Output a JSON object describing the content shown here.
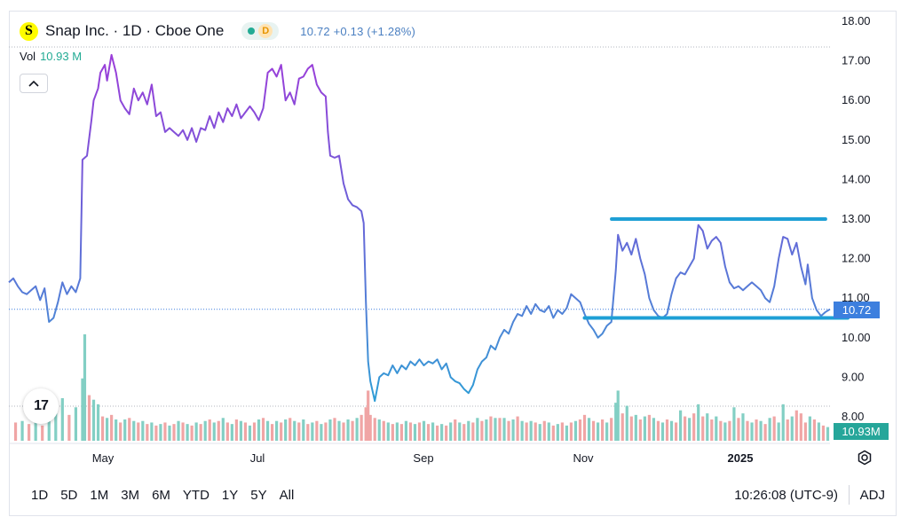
{
  "header": {
    "logo_letter": "S",
    "title": "Snap Inc. · 1D · Cboe One",
    "status_letter": "D",
    "quote": "10.72  +0.13 (+1.28%)",
    "vol_label": "Vol",
    "vol_value": "10.93 M",
    "collapse_glyph": "^"
  },
  "badges": {
    "last_price": "10.72",
    "last_volume": "10.93M"
  },
  "tv_logo_text": "17",
  "bottom_bar": {
    "ranges": [
      "1D",
      "5D",
      "1M",
      "3M",
      "6M",
      "YTD",
      "1Y",
      "5Y",
      "All"
    ],
    "clock": "10:26:08 (UTC-9)",
    "adj": "ADJ"
  },
  "colors": {
    "line_gradient_top": "#9c3dd9",
    "line_gradient_bottom": "#2a9fd6",
    "line_mid": "#4e7ddc",
    "drawing_lines": "#1e9fd5",
    "volume_up": "#83cfc4",
    "volume_down": "#f0a5a5",
    "last_price": "#3d7fde",
    "last_volume": "#26a69a"
  },
  "chart_data": {
    "type": "line",
    "title": "Snap Inc. · 1D · Cboe One",
    "xlabel": "",
    "ylabel": "",
    "ylim": [
      7.5,
      18.2
    ],
    "y_ticks": [
      "18.00",
      "17.00",
      "16.00",
      "15.00",
      "14.00",
      "13.00",
      "12.00",
      "11.00",
      "10.00",
      "9.00",
      "8.00"
    ],
    "x_ticks": [
      {
        "label": "May",
        "day": 32
      },
      {
        "label": "Jul",
        "day": 93
      },
      {
        "label": "Sep",
        "day": 155
      },
      {
        "label": "Nov",
        "day": 217
      },
      {
        "label": "2025",
        "day": 278
      }
    ],
    "x_day_range": [
      0,
      296
    ],
    "price_points": [
      [
        0,
        11.4
      ],
      [
        2,
        11.5
      ],
      [
        4,
        11.3
      ],
      [
        6,
        11.15
      ],
      [
        8,
        11.1
      ],
      [
        10,
        11.2
      ],
      [
        12,
        11.3
      ],
      [
        14,
        10.95
      ],
      [
        16,
        11.25
      ],
      [
        18,
        10.4
      ],
      [
        20,
        10.5
      ],
      [
        22,
        10.9
      ],
      [
        24,
        11.4
      ],
      [
        26,
        11.1
      ],
      [
        28,
        11.3
      ],
      [
        30,
        11.15
      ],
      [
        32,
        11.5
      ],
      [
        33,
        14.5
      ],
      [
        35,
        14.6
      ],
      [
        37,
        15.5
      ],
      [
        38,
        16.0
      ],
      [
        40,
        16.3
      ],
      [
        41,
        16.7
      ],
      [
        43,
        16.9
      ],
      [
        44,
        16.5
      ],
      [
        46,
        17.15
      ],
      [
        48,
        16.7
      ],
      [
        50,
        16.0
      ],
      [
        52,
        15.8
      ],
      [
        54,
        15.65
      ],
      [
        56,
        16.3
      ],
      [
        58,
        16.0
      ],
      [
        60,
        16.2
      ],
      [
        62,
        15.9
      ],
      [
        64,
        16.4
      ],
      [
        66,
        15.6
      ],
      [
        68,
        15.7
      ],
      [
        70,
        15.2
      ],
      [
        72,
        15.3
      ],
      [
        74,
        15.2
      ],
      [
        76,
        15.1
      ],
      [
        78,
        15.25
      ],
      [
        80,
        15.0
      ],
      [
        82,
        15.3
      ],
      [
        84,
        14.95
      ],
      [
        86,
        15.3
      ],
      [
        88,
        15.25
      ],
      [
        90,
        15.6
      ],
      [
        92,
        15.3
      ],
      [
        94,
        15.7
      ],
      [
        96,
        15.45
      ],
      [
        98,
        15.8
      ],
      [
        100,
        15.6
      ],
      [
        102,
        15.9
      ],
      [
        104,
        15.55
      ],
      [
        106,
        15.7
      ],
      [
        108,
        15.85
      ],
      [
        110,
        15.7
      ],
      [
        112,
        15.5
      ],
      [
        114,
        15.8
      ],
      [
        116,
        16.7
      ],
      [
        118,
        16.8
      ],
      [
        120,
        16.6
      ],
      [
        122,
        16.9
      ],
      [
        124,
        16.0
      ],
      [
        126,
        16.2
      ],
      [
        128,
        15.9
      ],
      [
        130,
        16.55
      ],
      [
        132,
        16.6
      ],
      [
        134,
        16.8
      ],
      [
        136,
        16.9
      ],
      [
        138,
        16.4
      ],
      [
        140,
        16.2
      ],
      [
        142,
        16.1
      ],
      [
        143,
        15.2
      ],
      [
        144,
        14.6
      ],
      [
        146,
        14.55
      ],
      [
        148,
        14.6
      ],
      [
        150,
        13.9
      ],
      [
        152,
        13.5
      ],
      [
        154,
        13.35
      ],
      [
        156,
        13.3
      ],
      [
        158,
        13.2
      ],
      [
        159,
        12.9
      ],
      [
        160,
        10.9
      ],
      [
        161,
        9.4
      ],
      [
        162,
        8.9
      ],
      [
        164,
        8.4
      ],
      [
        166,
        9.0
      ],
      [
        168,
        9.1
      ],
      [
        170,
        9.05
      ],
      [
        172,
        9.3
      ],
      [
        174,
        9.1
      ],
      [
        176,
        9.3
      ],
      [
        178,
        9.2
      ],
      [
        180,
        9.4
      ],
      [
        182,
        9.3
      ],
      [
        184,
        9.45
      ],
      [
        186,
        9.3
      ],
      [
        188,
        9.4
      ],
      [
        190,
        9.35
      ],
      [
        192,
        9.45
      ],
      [
        194,
        9.2
      ],
      [
        196,
        9.35
      ],
      [
        198,
        9.0
      ],
      [
        200,
        8.9
      ],
      [
        202,
        8.85
      ],
      [
        204,
        8.7
      ],
      [
        206,
        8.6
      ],
      [
        208,
        8.8
      ],
      [
        210,
        9.2
      ],
      [
        212,
        9.4
      ],
      [
        214,
        9.5
      ],
      [
        216,
        9.8
      ],
      [
        218,
        9.7
      ],
      [
        220,
        10.0
      ],
      [
        222,
        10.2
      ],
      [
        224,
        10.1
      ],
      [
        226,
        10.4
      ],
      [
        228,
        10.6
      ],
      [
        230,
        10.55
      ],
      [
        232,
        10.8
      ],
      [
        234,
        10.6
      ],
      [
        236,
        10.85
      ],
      [
        238,
        10.7
      ],
      [
        240,
        10.65
      ],
      [
        242,
        10.8
      ],
      [
        244,
        10.5
      ],
      [
        246,
        10.7
      ],
      [
        248,
        10.6
      ],
      [
        250,
        10.75
      ],
      [
        252,
        11.1
      ],
      [
        254,
        11.0
      ],
      [
        256,
        10.9
      ],
      [
        258,
        10.6
      ],
      [
        260,
        10.35
      ],
      [
        262,
        10.2
      ],
      [
        264,
        10.0
      ],
      [
        266,
        10.1
      ],
      [
        268,
        10.3
      ],
      [
        270,
        10.4
      ],
      [
        272,
        11.7
      ],
      [
        273,
        12.6
      ],
      [
        275,
        12.2
      ],
      [
        277,
        12.4
      ],
      [
        279,
        12.1
      ],
      [
        281,
        12.5
      ],
      [
        283,
        12.0
      ],
      [
        285,
        11.6
      ],
      [
        287,
        11.0
      ],
      [
        289,
        10.7
      ],
      [
        291,
        10.55
      ],
      [
        293,
        10.5
      ],
      [
        295,
        10.6
      ],
      [
        297,
        11.1
      ],
      [
        299,
        11.5
      ],
      [
        301,
        11.65
      ],
      [
        303,
        11.6
      ],
      [
        305,
        11.8
      ],
      [
        307,
        12.0
      ],
      [
        309,
        12.85
      ],
      [
        311,
        12.7
      ],
      [
        313,
        12.25
      ],
      [
        315,
        12.45
      ],
      [
        317,
        12.55
      ],
      [
        319,
        12.4
      ],
      [
        321,
        11.8
      ],
      [
        323,
        11.4
      ],
      [
        325,
        11.25
      ],
      [
        327,
        11.3
      ],
      [
        329,
        11.2
      ],
      [
        331,
        11.3
      ],
      [
        333,
        11.4
      ],
      [
        335,
        11.3
      ],
      [
        337,
        11.2
      ],
      [
        339,
        11.0
      ],
      [
        341,
        10.9
      ],
      [
        343,
        11.3
      ],
      [
        345,
        12.0
      ],
      [
        347,
        12.55
      ],
      [
        349,
        12.5
      ],
      [
        351,
        12.1
      ],
      [
        353,
        12.4
      ],
      [
        355,
        11.8
      ],
      [
        357,
        11.35
      ],
      [
        358,
        11.85
      ],
      [
        360,
        11.0
      ],
      [
        362,
        10.7
      ],
      [
        364,
        10.55
      ],
      [
        366,
        10.65
      ],
      [
        368,
        10.72
      ]
    ],
    "price_x_scale_note_days_total": 368,
    "support_line": {
      "from_day": 258,
      "to_day": 368,
      "value": 10.5
    },
    "resistance_line": {
      "from_day": 263,
      "to_day": 358,
      "value": 13.0
    },
    "last_price": 10.72,
    "volume_millions": [
      [
        3,
        12,
        0
      ],
      [
        6,
        13,
        1
      ],
      [
        9,
        11,
        0
      ],
      [
        12,
        12,
        1
      ],
      [
        15,
        10,
        0
      ],
      [
        18,
        14,
        1
      ],
      [
        21,
        27,
        1
      ],
      [
        24,
        28,
        1
      ],
      [
        27,
        17,
        0
      ],
      [
        30,
        22,
        1
      ],
      [
        33,
        41,
        1
      ],
      [
        34,
        70,
        1
      ],
      [
        36,
        30,
        0
      ],
      [
        38,
        27,
        1
      ],
      [
        40,
        24,
        1
      ],
      [
        42,
        16,
        0
      ],
      [
        44,
        15,
        1
      ],
      [
        46,
        17,
        0
      ],
      [
        48,
        14,
        1
      ],
      [
        50,
        12,
        0
      ],
      [
        52,
        14,
        1
      ],
      [
        54,
        15,
        0
      ],
      [
        56,
        13,
        1
      ],
      [
        58,
        12,
        0
      ],
      [
        60,
        13,
        1
      ],
      [
        62,
        11,
        0
      ],
      [
        64,
        12,
        1
      ],
      [
        66,
        10,
        0
      ],
      [
        68,
        11,
        1
      ],
      [
        70,
        12,
        0
      ],
      [
        72,
        10,
        1
      ],
      [
        74,
        11,
        0
      ],
      [
        76,
        13,
        1
      ],
      [
        78,
        12,
        0
      ],
      [
        80,
        11,
        1
      ],
      [
        82,
        10,
        0
      ],
      [
        84,
        12,
        1
      ],
      [
        86,
        11,
        0
      ],
      [
        88,
        13,
        1
      ],
      [
        90,
        14,
        0
      ],
      [
        92,
        12,
        1
      ],
      [
        94,
        13,
        0
      ],
      [
        96,
        15,
        1
      ],
      [
        98,
        12,
        0
      ],
      [
        100,
        11,
        1
      ],
      [
        102,
        14,
        0
      ],
      [
        104,
        13,
        1
      ],
      [
        106,
        12,
        0
      ],
      [
        108,
        10,
        1
      ],
      [
        110,
        12,
        0
      ],
      [
        112,
        14,
        1
      ],
      [
        114,
        15,
        0
      ],
      [
        116,
        13,
        1
      ],
      [
        118,
        11,
        0
      ],
      [
        120,
        13,
        1
      ],
      [
        122,
        12,
        0
      ],
      [
        124,
        14,
        1
      ],
      [
        126,
        15,
        0
      ],
      [
        128,
        13,
        1
      ],
      [
        130,
        12,
        0
      ],
      [
        132,
        14,
        1
      ],
      [
        134,
        11,
        0
      ],
      [
        136,
        12,
        1
      ],
      [
        138,
        13,
        0
      ],
      [
        140,
        11,
        1
      ],
      [
        142,
        12,
        0
      ],
      [
        144,
        14,
        1
      ],
      [
        146,
        15,
        0
      ],
      [
        148,
        13,
        1
      ],
      [
        150,
        12,
        0
      ],
      [
        152,
        14,
        1
      ],
      [
        154,
        13,
        0
      ],
      [
        156,
        15,
        1
      ],
      [
        158,
        17,
        0
      ],
      [
        160,
        22,
        0
      ],
      [
        161,
        33,
        0
      ],
      [
        162,
        17,
        0
      ],
      [
        164,
        15,
        0
      ],
      [
        166,
        14,
        1
      ],
      [
        168,
        13,
        0
      ],
      [
        170,
        12,
        1
      ],
      [
        172,
        11,
        0
      ],
      [
        174,
        12,
        1
      ],
      [
        176,
        11,
        0
      ],
      [
        178,
        13,
        1
      ],
      [
        180,
        12,
        0
      ],
      [
        182,
        11,
        1
      ],
      [
        184,
        12,
        0
      ],
      [
        186,
        13,
        1
      ],
      [
        188,
        11,
        0
      ],
      [
        190,
        12,
        1
      ],
      [
        192,
        10,
        0
      ],
      [
        194,
        11,
        1
      ],
      [
        196,
        10,
        0
      ],
      [
        198,
        12,
        1
      ],
      [
        200,
        14,
        0
      ],
      [
        202,
        12,
        1
      ],
      [
        204,
        11,
        0
      ],
      [
        206,
        13,
        1
      ],
      [
        208,
        12,
        0
      ],
      [
        210,
        15,
        1
      ],
      [
        212,
        13,
        0
      ],
      [
        214,
        14,
        1
      ],
      [
        216,
        16,
        0
      ],
      [
        218,
        15,
        1
      ],
      [
        220,
        15,
        0
      ],
      [
        222,
        15,
        1
      ],
      [
        224,
        13,
        0
      ],
      [
        226,
        14,
        1
      ],
      [
        228,
        16,
        0
      ],
      [
        230,
        13,
        1
      ],
      [
        232,
        12,
        0
      ],
      [
        234,
        13,
        1
      ],
      [
        236,
        12,
        0
      ],
      [
        238,
        11,
        1
      ],
      [
        240,
        13,
        0
      ],
      [
        242,
        12,
        1
      ],
      [
        244,
        10,
        0
      ],
      [
        246,
        11,
        1
      ],
      [
        248,
        12,
        0
      ],
      [
        250,
        10,
        1
      ],
      [
        252,
        12,
        0
      ],
      [
        254,
        13,
        1
      ],
      [
        256,
        14,
        0
      ],
      [
        258,
        17,
        0
      ],
      [
        260,
        15,
        1
      ],
      [
        262,
        13,
        0
      ],
      [
        264,
        12,
        1
      ],
      [
        266,
        14,
        0
      ],
      [
        268,
        12,
        1
      ],
      [
        270,
        15,
        0
      ],
      [
        272,
        25,
        1
      ],
      [
        273,
        33,
        1
      ],
      [
        275,
        18,
        0
      ],
      [
        277,
        23,
        1
      ],
      [
        279,
        16,
        0
      ],
      [
        281,
        17,
        1
      ],
      [
        283,
        14,
        0
      ],
      [
        285,
        16,
        1
      ],
      [
        287,
        17,
        0
      ],
      [
        289,
        15,
        1
      ],
      [
        291,
        13,
        0
      ],
      [
        293,
        12,
        1
      ],
      [
        295,
        14,
        0
      ],
      [
        297,
        13,
        1
      ],
      [
        299,
        12,
        0
      ],
      [
        301,
        20,
        1
      ],
      [
        303,
        16,
        0
      ],
      [
        305,
        15,
        1
      ],
      [
        307,
        18,
        0
      ],
      [
        309,
        24,
        1
      ],
      [
        311,
        16,
        0
      ],
      [
        313,
        18,
        1
      ],
      [
        315,
        14,
        0
      ],
      [
        317,
        16,
        1
      ],
      [
        319,
        13,
        0
      ],
      [
        321,
        12,
        1
      ],
      [
        323,
        13,
        0
      ],
      [
        325,
        22,
        1
      ],
      [
        327,
        15,
        0
      ],
      [
        329,
        18,
        1
      ],
      [
        331,
        13,
        0
      ],
      [
        333,
        12,
        1
      ],
      [
        335,
        14,
        0
      ],
      [
        337,
        13,
        1
      ],
      [
        339,
        11,
        0
      ],
      [
        341,
        15,
        1
      ],
      [
        343,
        16,
        0
      ],
      [
        345,
        12,
        1
      ],
      [
        347,
        24,
        1
      ],
      [
        349,
        14,
        0
      ],
      [
        351,
        16,
        1
      ],
      [
        353,
        20,
        0
      ],
      [
        355,
        18,
        0
      ],
      [
        357,
        12,
        0
      ],
      [
        359,
        16,
        1
      ],
      [
        361,
        14,
        0
      ],
      [
        363,
        12,
        1
      ],
      [
        365,
        10,
        0
      ],
      [
        367,
        9,
        1
      ]
    ]
  }
}
